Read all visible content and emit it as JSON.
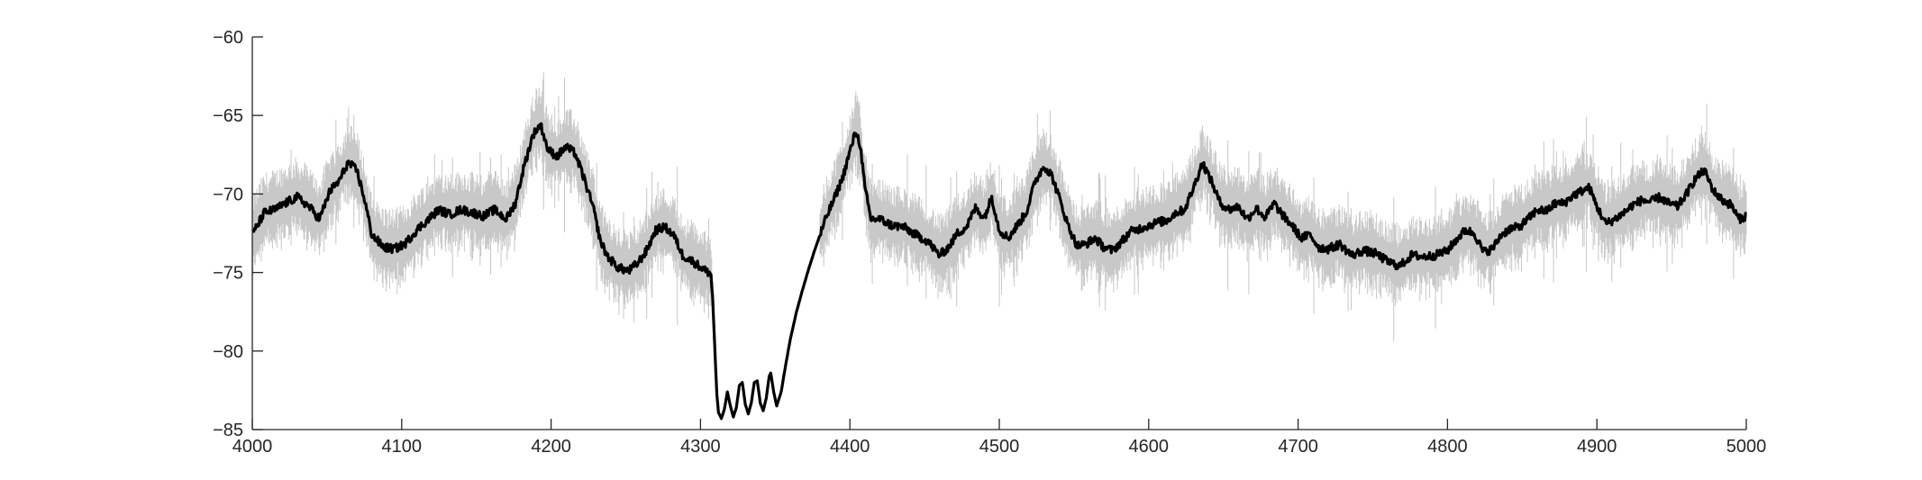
{
  "chart_data": {
    "type": "line",
    "title": "",
    "xlabel": "",
    "ylabel": "",
    "xlim": [
      4000,
      5000
    ],
    "ylim": [
      -85,
      -60
    ],
    "x_ticks": [
      4000,
      4100,
      4200,
      4300,
      4400,
      4500,
      4600,
      4700,
      4800,
      4900,
      5000
    ],
    "y_ticks": [
      -60,
      -65,
      -70,
      -75,
      -80,
      -85
    ],
    "x_tick_labels": [
      "4000",
      "4100",
      "4200",
      "4300",
      "4400",
      "4500",
      "4600",
      "4700",
      "4800",
      "4900",
      "5000"
    ],
    "y_tick_labels": [
      "−60",
      "−65",
      "−70",
      "−75",
      "−80",
      "−85"
    ],
    "grid": false,
    "series": [
      {
        "role": "mean",
        "color": "#000000",
        "points": [
          [
            4000,
            -72.6
          ],
          [
            4008,
            -71.2
          ],
          [
            4015,
            -71.0
          ],
          [
            4022,
            -70.6
          ],
          [
            4030,
            -70.2
          ],
          [
            4038,
            -70.8
          ],
          [
            4045,
            -71.6
          ],
          [
            4052,
            -69.8
          ],
          [
            4058,
            -69.2
          ],
          [
            4064,
            -68.0
          ],
          [
            4070,
            -68.5
          ],
          [
            4075,
            -70.3
          ],
          [
            4080,
            -72.6
          ],
          [
            4088,
            -73.4
          ],
          [
            4095,
            -73.5
          ],
          [
            4102,
            -73.2
          ],
          [
            4110,
            -72.3
          ],
          [
            4118,
            -71.6
          ],
          [
            4125,
            -71.0
          ],
          [
            4132,
            -71.3
          ],
          [
            4140,
            -71.0
          ],
          [
            4148,
            -71.2
          ],
          [
            4155,
            -71.4
          ],
          [
            4162,
            -71.0
          ],
          [
            4170,
            -71.6
          ],
          [
            4176,
            -70.6
          ],
          [
            4182,
            -68.2
          ],
          [
            4188,
            -66.2
          ],
          [
            4193,
            -65.6
          ],
          [
            4198,
            -67.2
          ],
          [
            4204,
            -67.6
          ],
          [
            4210,
            -67.0
          ],
          [
            4216,
            -67.4
          ],
          [
            4222,
            -69.0
          ],
          [
            4228,
            -70.8
          ],
          [
            4233,
            -73.0
          ],
          [
            4238,
            -74.0
          ],
          [
            4245,
            -74.7
          ],
          [
            4252,
            -74.9
          ],
          [
            4258,
            -74.4
          ],
          [
            4264,
            -73.6
          ],
          [
            4270,
            -72.3
          ],
          [
            4276,
            -72.1
          ],
          [
            4282,
            -72.6
          ],
          [
            4288,
            -73.9
          ],
          [
            4295,
            -74.3
          ],
          [
            4302,
            -74.8
          ],
          [
            4307,
            -75.1
          ],
          [
            4308,
            -76.5
          ],
          [
            4309,
            -78.5
          ],
          [
            4310,
            -80.8
          ],
          [
            4311,
            -82.8
          ],
          [
            4312,
            -83.9
          ],
          [
            4314,
            -84.3
          ],
          [
            4316,
            -83.7
          ],
          [
            4318,
            -82.6
          ],
          [
            4320,
            -83.5
          ],
          [
            4322,
            -84.2
          ],
          [
            4324,
            -83.6
          ],
          [
            4326,
            -82.2
          ],
          [
            4328,
            -82.0
          ],
          [
            4330,
            -83.4
          ],
          [
            4332,
            -84.0
          ],
          [
            4334,
            -83.3
          ],
          [
            4336,
            -82.0
          ],
          [
            4338,
            -81.9
          ],
          [
            4340,
            -83.3
          ],
          [
            4342,
            -83.8
          ],
          [
            4344,
            -83.0
          ],
          [
            4346,
            -81.6
          ],
          [
            4347,
            -81.4
          ],
          [
            4349,
            -82.6
          ],
          [
            4351,
            -83.5
          ],
          [
            4354,
            -82.6
          ],
          [
            4357,
            -80.9
          ],
          [
            4360,
            -79.3
          ],
          [
            4364,
            -77.6
          ],
          [
            4368,
            -76.2
          ],
          [
            4372,
            -74.9
          ],
          [
            4376,
            -73.7
          ],
          [
            4380,
            -72.6
          ],
          [
            4385,
            -71.3
          ],
          [
            4390,
            -70.2
          ],
          [
            4395,
            -69.0
          ],
          [
            4400,
            -67.3
          ],
          [
            4404,
            -66.0
          ],
          [
            4407,
            -66.9
          ],
          [
            4410,
            -69.6
          ],
          [
            4414,
            -71.6
          ],
          [
            4420,
            -71.6
          ],
          [
            4428,
            -72.0
          ],
          [
            4436,
            -72.1
          ],
          [
            4444,
            -72.6
          ],
          [
            4452,
            -73.0
          ],
          [
            4460,
            -73.9
          ],
          [
            4466,
            -73.4
          ],
          [
            4472,
            -72.5
          ],
          [
            4478,
            -72.1
          ],
          [
            4484,
            -70.9
          ],
          [
            4490,
            -71.5
          ],
          [
            4495,
            -70.2
          ],
          [
            4500,
            -72.3
          ],
          [
            4506,
            -72.8
          ],
          [
            4512,
            -72.0
          ],
          [
            4518,
            -71.2
          ],
          [
            4524,
            -69.2
          ],
          [
            4530,
            -68.2
          ],
          [
            4535,
            -68.8
          ],
          [
            4540,
            -70.2
          ],
          [
            4546,
            -72.0
          ],
          [
            4552,
            -73.3
          ],
          [
            4558,
            -73.2
          ],
          [
            4564,
            -72.8
          ],
          [
            4570,
            -73.4
          ],
          [
            4576,
            -73.6
          ],
          [
            4582,
            -73.0
          ],
          [
            4588,
            -72.4
          ],
          [
            4594,
            -72.2
          ],
          [
            4600,
            -72.0
          ],
          [
            4606,
            -71.8
          ],
          [
            4612,
            -71.7
          ],
          [
            4618,
            -71.2
          ],
          [
            4624,
            -71.0
          ],
          [
            4630,
            -69.6
          ],
          [
            4636,
            -68.0
          ],
          [
            4642,
            -69.2
          ],
          [
            4648,
            -70.6
          ],
          [
            4654,
            -71.0
          ],
          [
            4660,
            -70.8
          ],
          [
            4666,
            -71.6
          ],
          [
            4672,
            -70.9
          ],
          [
            4678,
            -71.5
          ],
          [
            4684,
            -70.6
          ],
          [
            4690,
            -71.4
          ],
          [
            4696,
            -72.0
          ],
          [
            4702,
            -72.8
          ],
          [
            4708,
            -72.6
          ],
          [
            4714,
            -73.4
          ],
          [
            4720,
            -73.5
          ],
          [
            4728,
            -73.2
          ],
          [
            4736,
            -73.9
          ],
          [
            4744,
            -73.6
          ],
          [
            4752,
            -73.8
          ],
          [
            4760,
            -74.3
          ],
          [
            4768,
            -74.6
          ],
          [
            4776,
            -73.9
          ],
          [
            4784,
            -74.0
          ],
          [
            4792,
            -73.9
          ],
          [
            4800,
            -73.6
          ],
          [
            4806,
            -72.9
          ],
          [
            4812,
            -72.3
          ],
          [
            4818,
            -72.5
          ],
          [
            4824,
            -73.7
          ],
          [
            4830,
            -73.5
          ],
          [
            4836,
            -72.6
          ],
          [
            4842,
            -72.2
          ],
          [
            4848,
            -72.1
          ],
          [
            4854,
            -71.6
          ],
          [
            4860,
            -71.0
          ],
          [
            4866,
            -71.1
          ],
          [
            4872,
            -70.6
          ],
          [
            4878,
            -70.6
          ],
          [
            4884,
            -70.1
          ],
          [
            4890,
            -69.8
          ],
          [
            4895,
            -69.6
          ],
          [
            4900,
            -70.8
          ],
          [
            4906,
            -71.9
          ],
          [
            4912,
            -71.6
          ],
          [
            4918,
            -71.2
          ],
          [
            4924,
            -70.7
          ],
          [
            4930,
            -70.4
          ],
          [
            4936,
            -70.5
          ],
          [
            4942,
            -70.2
          ],
          [
            4948,
            -70.6
          ],
          [
            4954,
            -70.8
          ],
          [
            4960,
            -70.0
          ],
          [
            4966,
            -69.0
          ],
          [
            4972,
            -68.5
          ],
          [
            4978,
            -69.8
          ],
          [
            4984,
            -70.4
          ],
          [
            4990,
            -70.7
          ],
          [
            4995,
            -71.6
          ],
          [
            5000,
            -71.4
          ]
        ]
      },
      {
        "role": "spread",
        "color": "#c8c8c8",
        "description": "light gray envelope of individual traces around the mean"
      }
    ]
  }
}
